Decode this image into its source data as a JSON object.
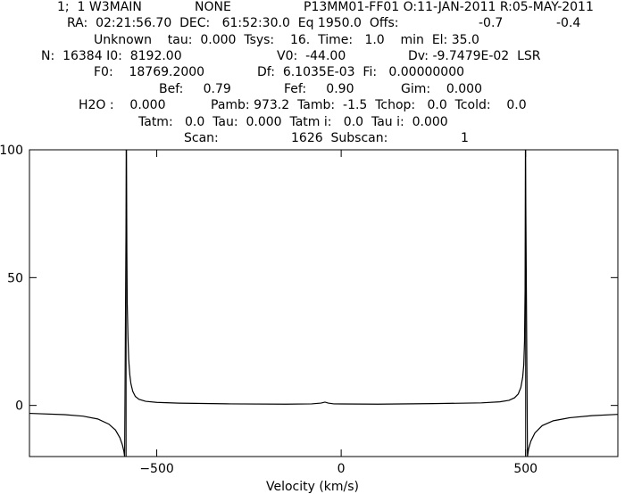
{
  "header": {
    "lines": [
      {
        "segments": [
          "1;  1 W3MAIN",
          "NONE",
          "P13MM01-FF01 O:11-JAN-2011 R:05-MAY-2011"
        ]
      },
      {
        "segments": [
          "RA:  02:21:56.70  DEC:   61:52:30.0  Eq 1950.0  Offs:",
          "-0.7",
          "-0.4"
        ]
      },
      {
        "segments": [
          "Unknown    tau:  0.000  Tsys:    16.  Time:   1.0    min  El: 35.0"
        ]
      },
      {
        "segments": [
          "N:  16384 I0:  8192.00",
          "V0:  -44.00",
          "Dv: -9.7479E-02  LSR"
        ]
      },
      {
        "segments": [
          "F0:    18769.2000",
          "Df:  6.1035E-03  Fi:   0.00000000"
        ]
      },
      {
        "segments": [
          "Bef:     0.79",
          "Fef:     0.90",
          "Gim:    0.000"
        ]
      },
      {
        "segments": [
          "H2O :    0.000",
          "Pamb: 973.2  Tamb:  -1.5  Tchop:   0.0  Tcold:    0.0"
        ]
      },
      {
        "segments": [
          "Tatm:   0.0  Tau:  0.000  Tatm i:   0.0  Tau i:  0.000"
        ]
      },
      {
        "segments": [
          "Scan:",
          "1626  Subscan:",
          "1"
        ]
      }
    ]
  },
  "chart_data": {
    "type": "line",
    "title": "",
    "xlabel": "Velocity (km/s)",
    "ylabel": "",
    "xlim": [
      -845,
      750
    ],
    "ylim": [
      -20,
      100
    ],
    "xticks": [
      -500,
      0,
      500
    ],
    "xtick_labels": [
      "−500",
      "0",
      "500"
    ],
    "yticks": [
      0,
      50,
      100
    ],
    "ytick_labels": [
      "0",
      "50",
      "100"
    ],
    "grid": false,
    "vertical_lines": [
      -583,
      500
    ],
    "series": [
      {
        "points": [
          [
            -845,
            -3.1
          ],
          [
            -750,
            -3.6
          ],
          [
            -700,
            -4.2
          ],
          [
            -660,
            -5.3
          ],
          [
            -630,
            -7.3
          ],
          [
            -612,
            -9.6
          ],
          [
            -600,
            -12.6
          ],
          [
            -593,
            -15.5
          ],
          [
            -589,
            -18.0
          ],
          [
            -587,
            -20
          ],
          [
            -582,
            100
          ],
          [
            -581,
            60
          ],
          [
            -580,
            40
          ],
          [
            -578,
            27
          ],
          [
            -576,
            18
          ],
          [
            -573,
            12
          ],
          [
            -570,
            8.5
          ],
          [
            -565,
            5.5
          ],
          [
            -558,
            3.5
          ],
          [
            -548,
            2.4
          ],
          [
            -530,
            1.6
          ],
          [
            -500,
            1.2
          ],
          [
            -440,
            0.9
          ],
          [
            -300,
            0.6
          ],
          [
            -150,
            0.5
          ],
          [
            -80,
            0.6
          ],
          [
            -55,
            0.9
          ],
          [
            -44,
            1.3
          ],
          [
            -35,
            0.9
          ],
          [
            -20,
            0.6
          ],
          [
            100,
            0.5
          ],
          [
            250,
            0.7
          ],
          [
            380,
            1.0
          ],
          [
            430,
            1.4
          ],
          [
            455,
            2.0
          ],
          [
            470,
            3.0
          ],
          [
            480,
            4.5
          ],
          [
            487,
            7.0
          ],
          [
            492,
            11.0
          ],
          [
            495,
            16
          ],
          [
            497,
            25
          ],
          [
            498.5,
            45
          ],
          [
            499.5,
            100
          ],
          [
            505,
            -20
          ],
          [
            508,
            -17.0
          ],
          [
            514,
            -14.0
          ],
          [
            525,
            -10.8
          ],
          [
            545,
            -7.9
          ],
          [
            575,
            -6.0
          ],
          [
            620,
            -4.8
          ],
          [
            680,
            -4.0
          ],
          [
            750,
            -3.5
          ]
        ]
      }
    ]
  }
}
